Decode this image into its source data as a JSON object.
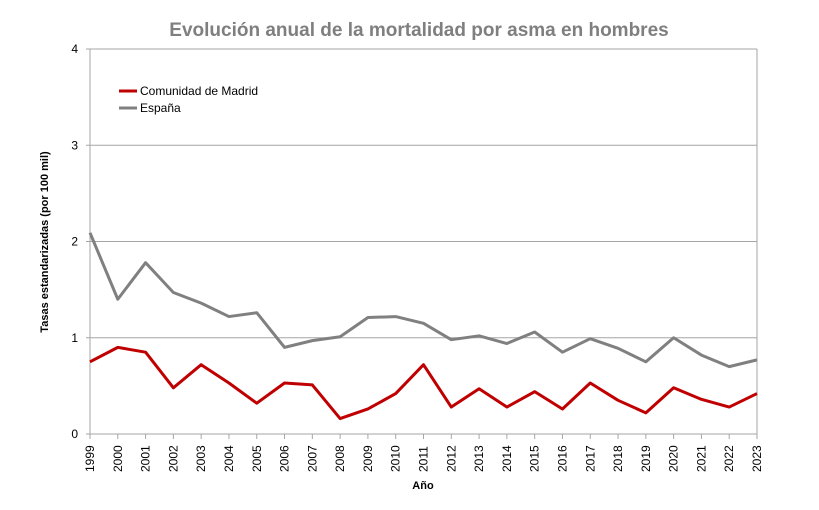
{
  "chart_data": {
    "type": "line",
    "title": "Evolución anual de la mortalidad por asma en hombres",
    "xlabel": "Año",
    "ylabel": "Tasas estandarizadas (por 100 mil)",
    "ylim": [
      0,
      4
    ],
    "yticks": [
      "0",
      "1",
      "2",
      "3",
      "4"
    ],
    "grid": true,
    "legend": "top-left",
    "x": [
      "1999",
      "2000",
      "2001",
      "2002",
      "2003",
      "2004",
      "2005",
      "2006",
      "2007",
      "2008",
      "2009",
      "2010",
      "2011",
      "2012",
      "2013",
      "2014",
      "2015",
      "2016",
      "2017",
      "2018",
      "2019",
      "2020",
      "2021",
      "2022",
      "2023"
    ],
    "series": [
      {
        "name": "Comunidad de Madrid",
        "color": "#c00000",
        "values": [
          0.75,
          0.9,
          0.85,
          0.48,
          0.72,
          0.53,
          0.32,
          0.53,
          0.51,
          0.16,
          0.26,
          0.42,
          0.72,
          0.28,
          0.47,
          0.28,
          0.44,
          0.26,
          0.53,
          0.35,
          0.22,
          0.48,
          0.36,
          0.28,
          0.42
        ]
      },
      {
        "name": "España",
        "color": "#808080",
        "values": [
          2.09,
          1.4,
          1.78,
          1.47,
          1.36,
          1.22,
          1.26,
          0.9,
          0.97,
          1.01,
          1.21,
          1.22,
          1.15,
          0.98,
          1.02,
          0.94,
          1.06,
          0.85,
          0.99,
          0.89,
          0.75,
          1.0,
          0.82,
          0.7,
          0.77
        ]
      }
    ]
  }
}
